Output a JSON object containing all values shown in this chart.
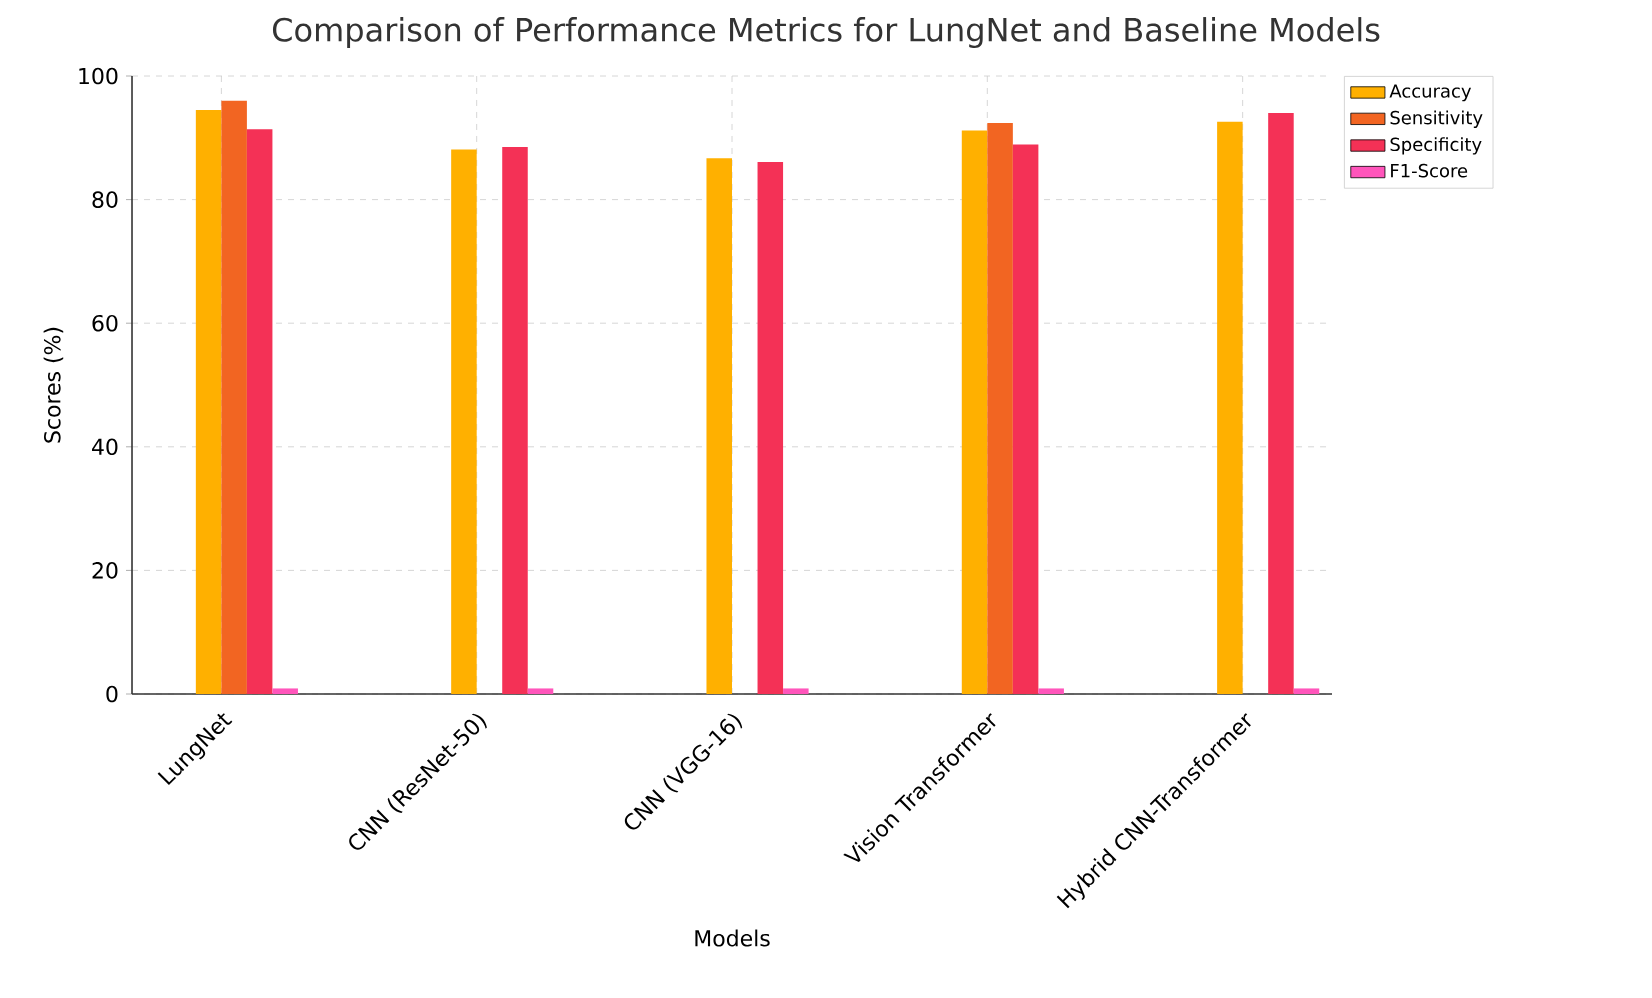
{
  "chart_data": {
    "type": "bar",
    "title": "Comparison of Performance Metrics for LungNet and Baseline Models",
    "xlabel": "Models",
    "ylabel": "Scores (%)",
    "categories": [
      "LungNet",
      "CNN (ResNet-50)",
      "CNN (VGG-16)",
      "Vision Transformer",
      "Hybrid CNN-Transformer"
    ],
    "series": [
      {
        "name": "Accuracy",
        "color": "#ffb000",
        "values": [
          94.5,
          88.1,
          86.7,
          91.2,
          92.6
        ]
      },
      {
        "name": "Sensitivity",
        "color": "#f26522",
        "values": [
          96.0,
          null,
          null,
          92.4,
          null
        ]
      },
      {
        "name": "Specificity",
        "color": "#f43156",
        "values": [
          91.4,
          88.5,
          86.1,
          88.9,
          94.0
        ]
      },
      {
        "name": "F1-Score",
        "color": "#ff55bb",
        "values": [
          0.9,
          0.9,
          0.9,
          0.9,
          0.9
        ]
      }
    ],
    "ylim": [
      0,
      100
    ],
    "yticks": [
      0,
      20,
      40,
      60,
      80,
      100
    ],
    "grid": true,
    "legend": "top right"
  }
}
